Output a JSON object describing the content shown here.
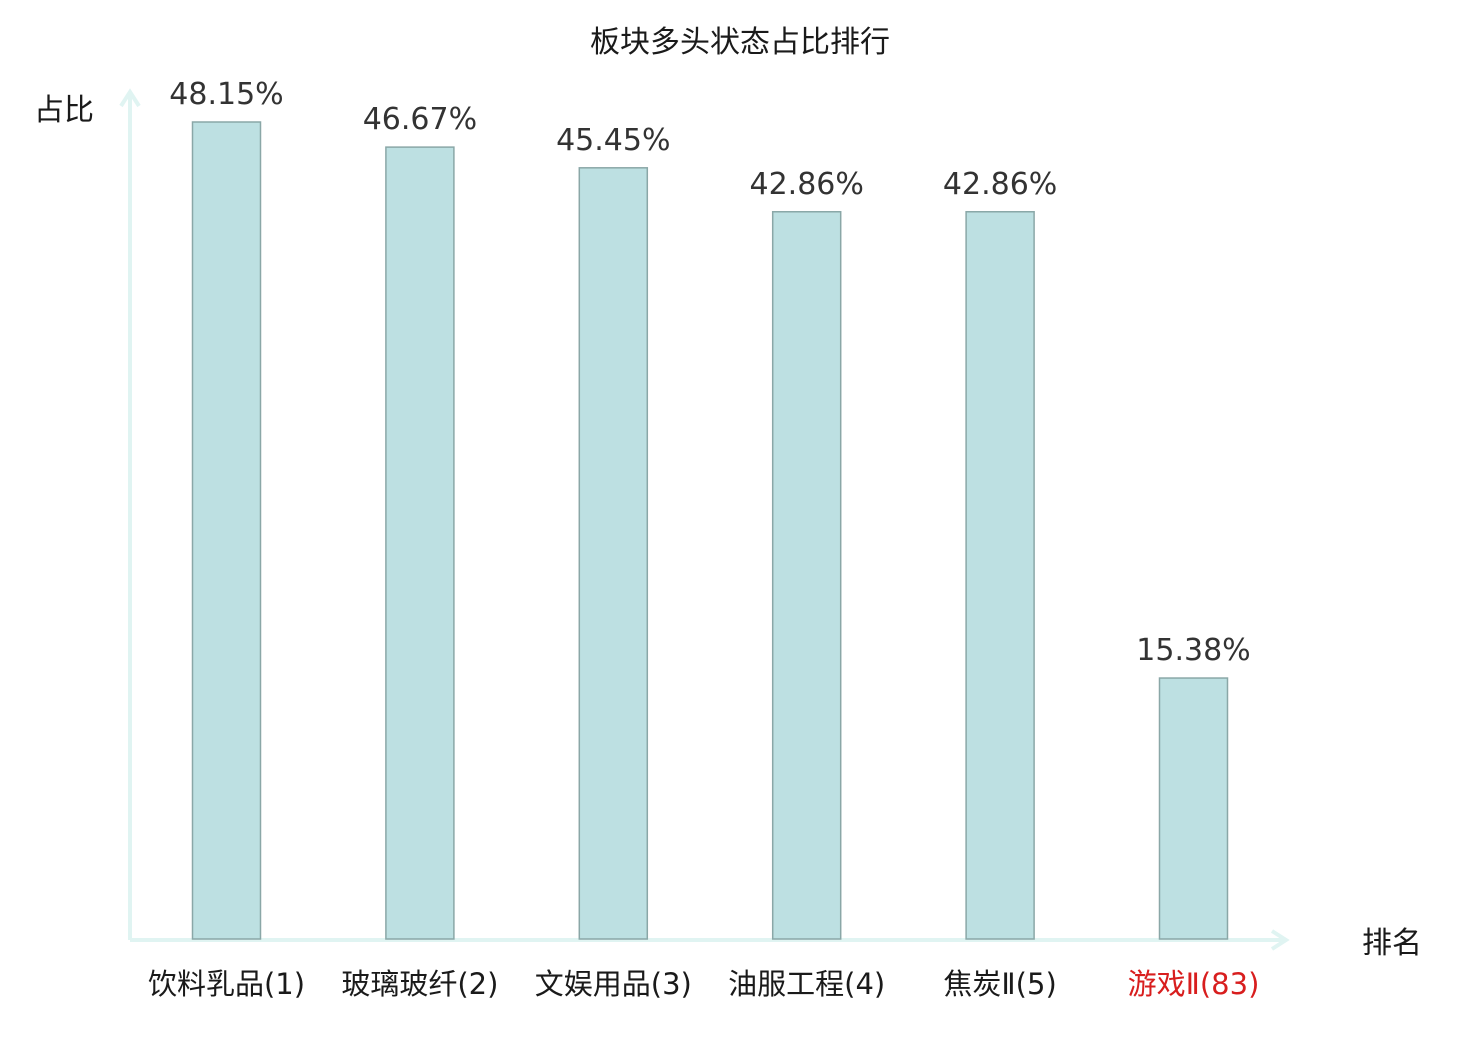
{
  "chart_data": {
    "type": "bar",
    "title": "板块多头状态占比排行",
    "xlabel": "排名",
    "ylabel": "占比",
    "categories": [
      "饮料乳品(1)",
      "玻璃玻纤(2)",
      "文娱用品(3)",
      "油服工程(4)",
      "焦炭Ⅱ(5)",
      "游戏Ⅱ(83)"
    ],
    "values": [
      48.15,
      46.67,
      45.45,
      42.86,
      42.86,
      15.38
    ],
    "value_labels": [
      "48.15%",
      "46.67%",
      "45.45%",
      "42.86%",
      "42.86%",
      "15.38%"
    ],
    "highlight": [
      false,
      false,
      false,
      false,
      false,
      true
    ],
    "ylim": [
      0,
      50
    ],
    "grid": false,
    "colors": {
      "bar": "#bde0e2",
      "bar_border": "#8aa7a7",
      "axis": "#e0f4f2",
      "highlight_text": "#d81e1e",
      "text": "#1a1a1a"
    }
  }
}
